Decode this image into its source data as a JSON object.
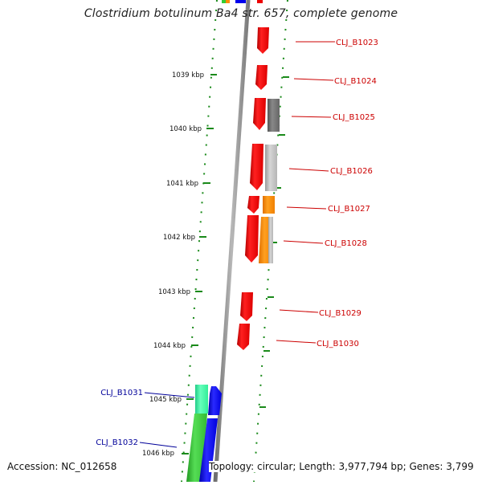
{
  "title": "Clostridium botulinum Ba4 str. 657, complete genome",
  "footer": {
    "accession": "Accession: NC_012658",
    "summary": "Topology: circular; Length: 3,977,794 bp; Genes: 3,799"
  },
  "scale_labels": [
    "1039 kbp",
    "1040 kbp",
    "1041 kbp",
    "1042 kbp",
    "1043 kbp",
    "1044 kbp",
    "1045 kbp",
    "1046 kbp"
  ],
  "gene_labels_outer": [
    "CLJ_B1023",
    "CLJ_B1024",
    "CLJ_B1025",
    "CLJ_B1026",
    "CLJ_B1027",
    "CLJ_B1028",
    "CLJ_B1029",
    "CLJ_B1030"
  ],
  "gene_labels_inner": [
    "CLJ_B1031",
    "CLJ_B1032"
  ],
  "colors": {
    "outer_label": "#cc0000",
    "inner_label": "#000099",
    "tick": "#1a8a1a",
    "backbone": "#8c8c8c",
    "cds_red": "#ee0000",
    "cds_gray": "#777777",
    "cds_lightgray": "#bdbdbd",
    "cds_orange": "#ff8c00",
    "cds_blue": "#0000ee",
    "cds_green": "#33cc33",
    "cds_teal": "#33ee99"
  }
}
